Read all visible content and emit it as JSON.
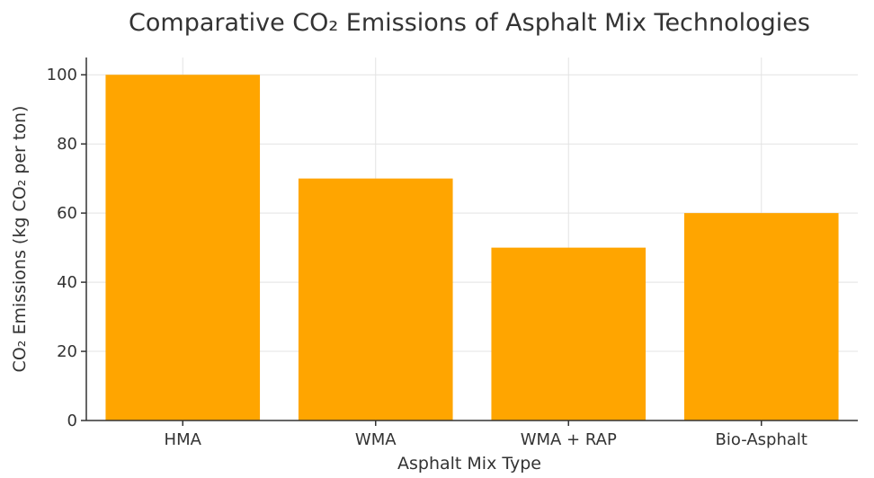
{
  "chart_data": {
    "type": "bar",
    "title": "Comparative CO₂ Emissions of Asphalt Mix Technologies",
    "xlabel": "Asphalt Mix Type",
    "ylabel": "CO₂ Emissions (kg CO₂ per ton)",
    "categories": [
      "HMA",
      "WMA",
      "WMA + RAP",
      "Bio-Asphalt"
    ],
    "values": [
      100,
      70,
      50,
      60
    ],
    "ylim": [
      0,
      105
    ],
    "yticks": [
      0,
      20,
      40,
      60,
      80,
      100
    ],
    "grid": true,
    "bar_color": "#FFA500"
  }
}
